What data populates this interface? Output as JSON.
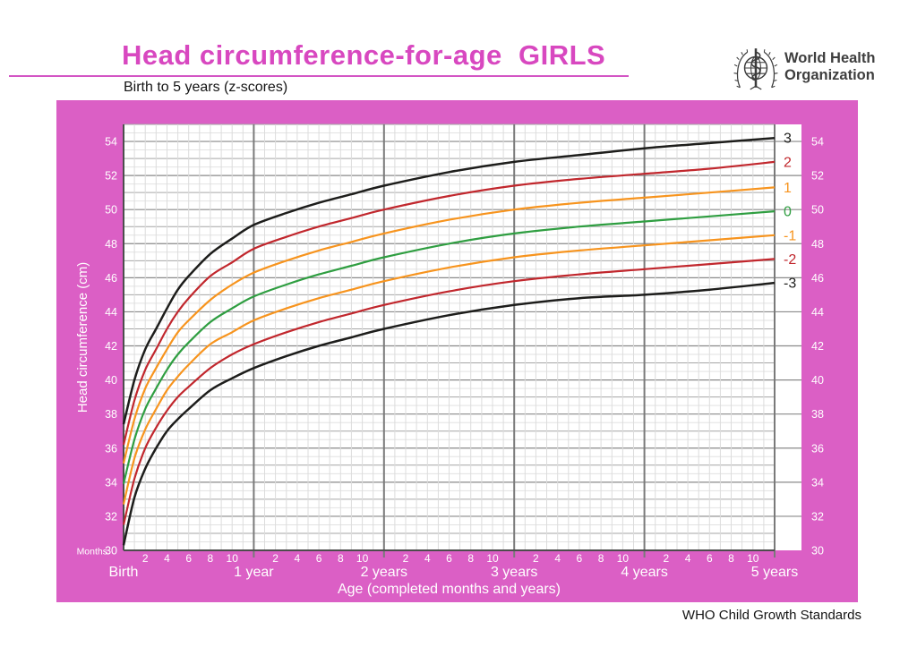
{
  "page": {
    "title": "Head circumference-for-age  GIRLS",
    "subtitle": "Birth to 5 years (z-scores)",
    "footer": "WHO Child Growth Standards",
    "logo": {
      "line1": "World Health",
      "line2": "Organization"
    }
  },
  "colors": {
    "panel_pink": "#db5fc5",
    "title_pink": "#d848c0",
    "curve_black": "#1d1d1b",
    "curve_red": "#c1272d",
    "curve_orange": "#f7941e",
    "curve_green": "#2f9e41",
    "axis_text": "#ffffff"
  },
  "chart_data": {
    "type": "line",
    "title": "Head circumference-for-age GIRLS",
    "subtitle": "Birth to 5 years (z-scores)",
    "xlabel": "Age (completed months and years)",
    "ylabel": "Head circumference (cm)",
    "x_unit_label": "Months",
    "xlim": [
      0,
      60
    ],
    "ylim": [
      30,
      55
    ],
    "grid": "on",
    "legend_position": "right-of-curves",
    "y_tick_labels": [
      54,
      52,
      50,
      48,
      46,
      44,
      42,
      40,
      38,
      36,
      34,
      32,
      30
    ],
    "x_year_labels": [
      "Birth",
      "1 year",
      "2 years",
      "3 years",
      "4 years",
      "5 years"
    ],
    "x_month_tick_labels": [
      2,
      4,
      6,
      8,
      10
    ],
    "months": [
      0,
      1,
      2,
      3,
      4,
      5,
      6,
      8,
      10,
      12,
      15,
      18,
      21,
      24,
      30,
      36,
      42,
      48,
      54,
      60
    ],
    "series": [
      {
        "name": "3",
        "zscore": 3,
        "color": "#1d1d1b",
        "values": [
          37.4,
          40.0,
          41.8,
          43.0,
          44.2,
          45.3,
          46.1,
          47.4,
          48.3,
          49.1,
          49.8,
          50.4,
          50.9,
          51.4,
          52.2,
          52.8,
          53.2,
          53.6,
          53.9,
          54.2
        ]
      },
      {
        "name": "2",
        "zscore": 2,
        "color": "#c1272d",
        "values": [
          36.2,
          38.8,
          40.6,
          41.8,
          43.0,
          44.0,
          44.8,
          46.1,
          46.9,
          47.7,
          48.4,
          49.0,
          49.5,
          50.0,
          50.8,
          51.4,
          51.8,
          52.1,
          52.4,
          52.8
        ]
      },
      {
        "name": "1",
        "zscore": 1,
        "color": "#f7941e",
        "values": [
          35.1,
          37.7,
          39.5,
          40.7,
          41.8,
          42.8,
          43.5,
          44.7,
          45.6,
          46.3,
          47.0,
          47.6,
          48.1,
          48.6,
          49.4,
          50.0,
          50.4,
          50.7,
          51.0,
          51.3
        ]
      },
      {
        "name": "0",
        "zscore": 0,
        "color": "#2f9e41",
        "values": [
          33.9,
          36.5,
          38.3,
          39.5,
          40.6,
          41.5,
          42.2,
          43.4,
          44.2,
          44.9,
          45.6,
          46.2,
          46.7,
          47.2,
          48.0,
          48.6,
          49.0,
          49.3,
          49.6,
          49.9
        ]
      },
      {
        "name": "-1",
        "zscore": -1,
        "color": "#f7941e",
        "values": [
          32.7,
          35.4,
          37.1,
          38.3,
          39.4,
          40.2,
          40.9,
          42.1,
          42.8,
          43.5,
          44.2,
          44.8,
          45.3,
          45.8,
          46.6,
          47.2,
          47.6,
          47.9,
          48.2,
          48.5
        ]
      },
      {
        "name": "-2",
        "zscore": -2,
        "color": "#c1272d",
        "values": [
          31.5,
          34.2,
          36.0,
          37.2,
          38.2,
          39.0,
          39.6,
          40.7,
          41.5,
          42.1,
          42.8,
          43.4,
          43.9,
          44.4,
          45.2,
          45.8,
          46.2,
          46.5,
          46.8,
          47.1
        ]
      },
      {
        "name": "-3",
        "zscore": -3,
        "color": "#1d1d1b",
        "values": [
          30.3,
          33.1,
          34.8,
          36.0,
          37.0,
          37.7,
          38.3,
          39.4,
          40.1,
          40.7,
          41.4,
          42.0,
          42.5,
          43.0,
          43.8,
          44.4,
          44.8,
          45.0,
          45.3,
          45.7
        ]
      }
    ]
  }
}
